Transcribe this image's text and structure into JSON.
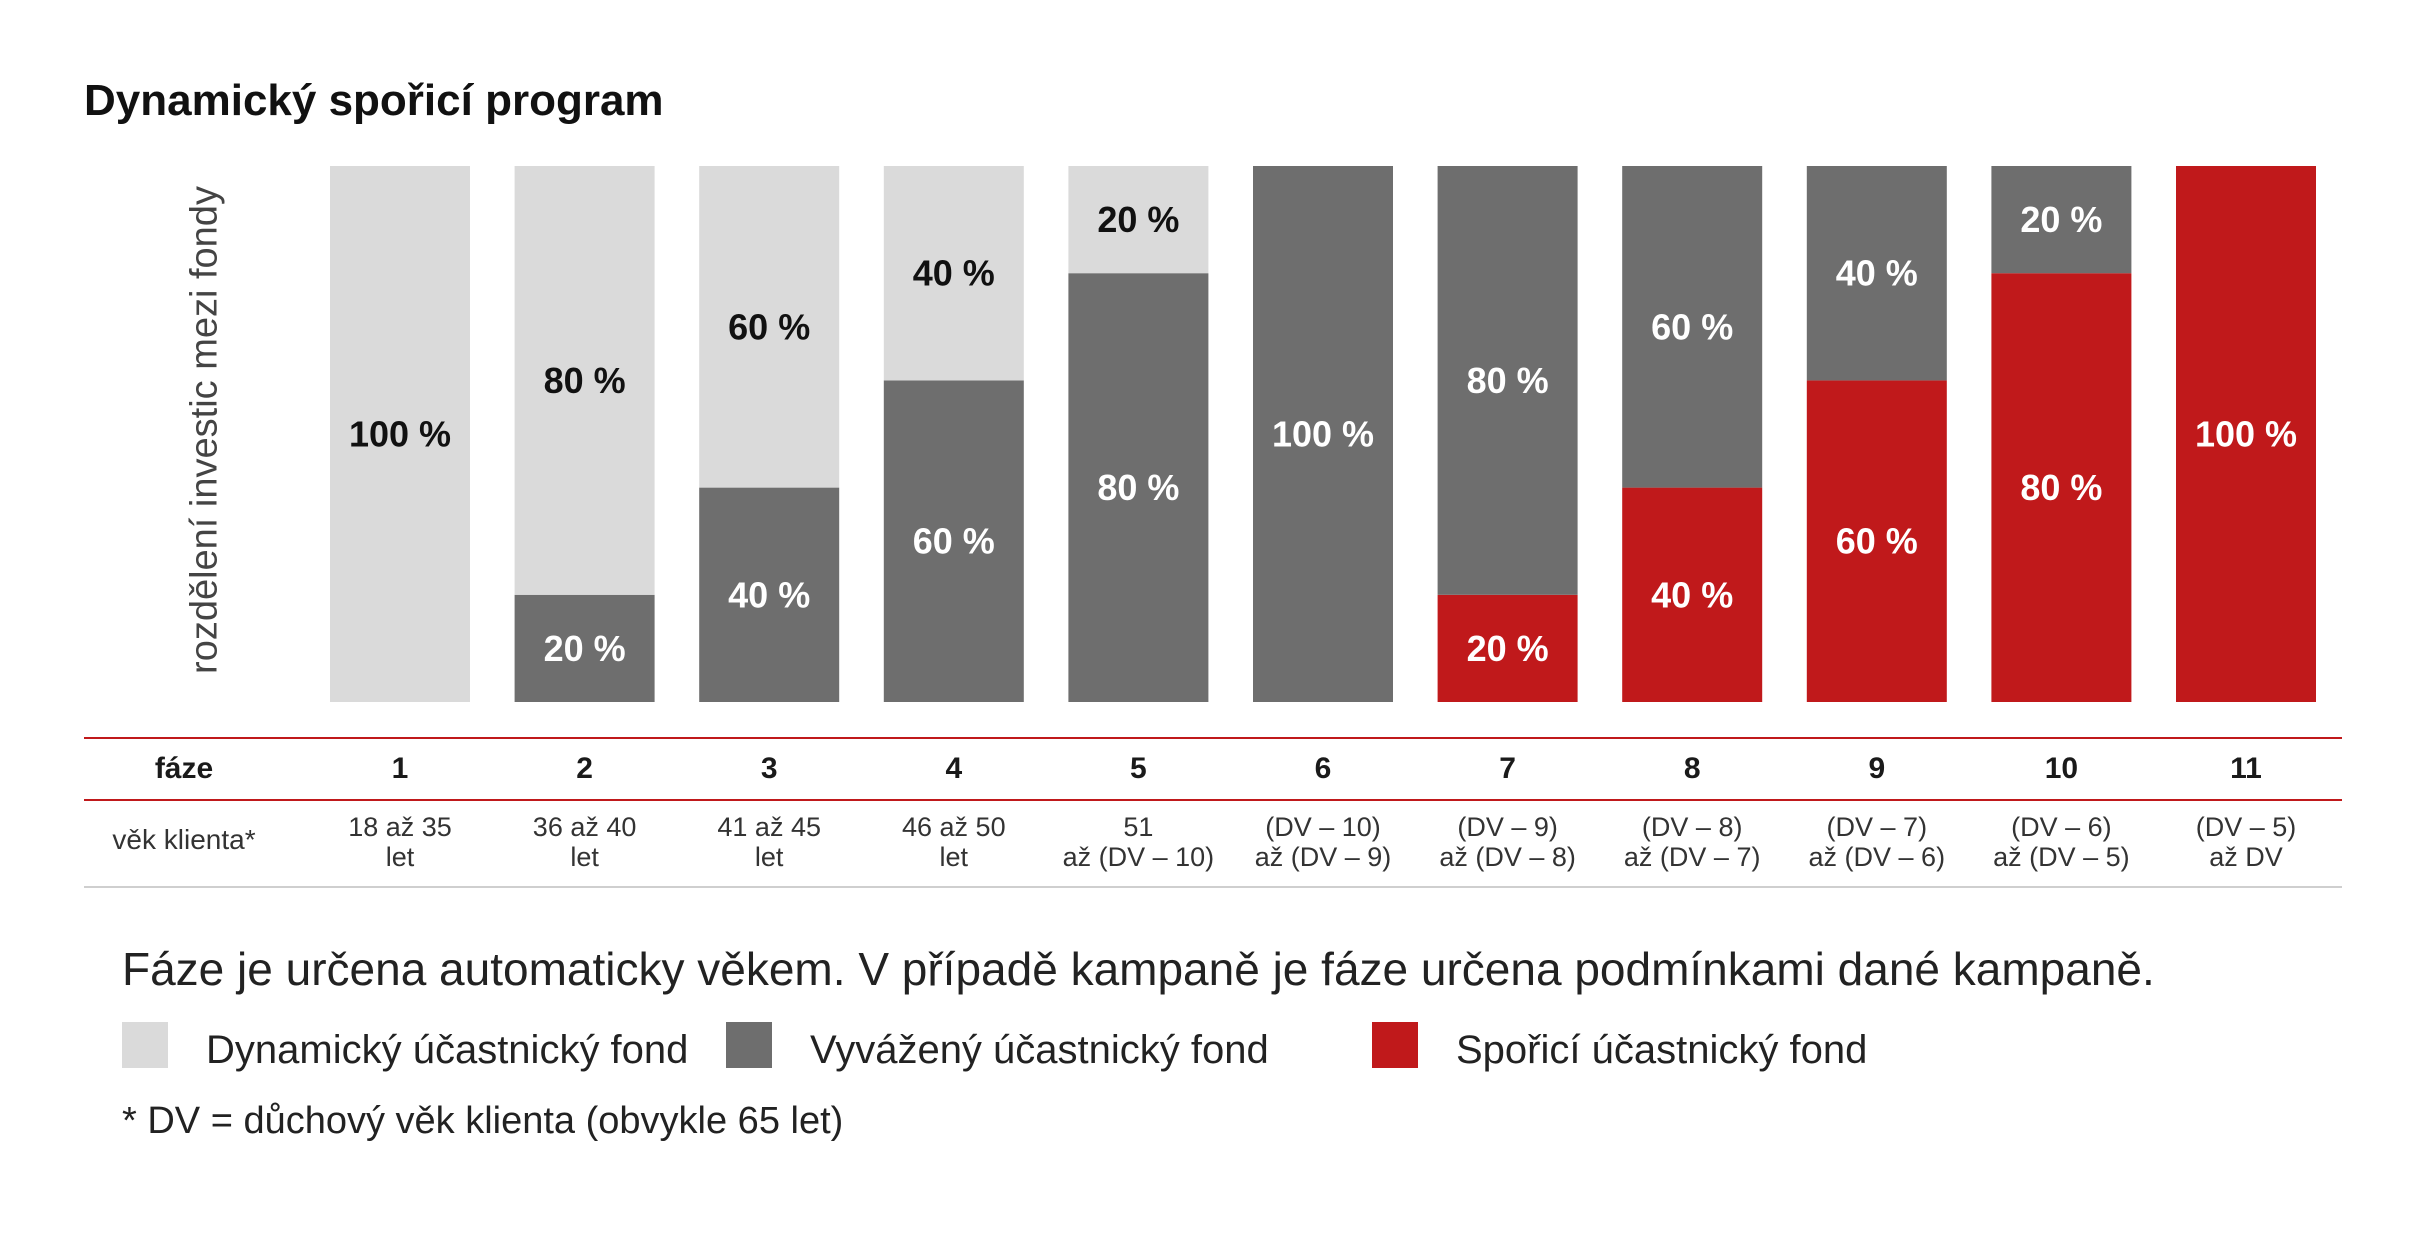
{
  "chart_data": {
    "type": "bar",
    "stacked": true,
    "title": "Dynamický spořicí program",
    "ylabel": "rozdělení investic mezi fondy",
    "ylim": [
      0,
      100
    ],
    "grid": false,
    "categories": [
      "1",
      "2",
      "3",
      "4",
      "5",
      "6",
      "7",
      "8",
      "9",
      "10",
      "11"
    ],
    "series": [
      {
        "name": "Spořicí účastnický fond",
        "color": "#c0191b",
        "label_color": "#ffffff",
        "values": [
          0,
          0,
          0,
          0,
          0,
          0,
          20,
          40,
          60,
          80,
          100
        ]
      },
      {
        "name": "Vyvážený účastnický fond",
        "color": "#6e6e6e",
        "label_color": "#ffffff",
        "values": [
          0,
          20,
          40,
          60,
          80,
          100,
          80,
          60,
          40,
          20,
          0
        ]
      },
      {
        "name": "Dynamický účastnický fond",
        "color": "#dadada",
        "label_color": "#111111",
        "values": [
          100,
          80,
          60,
          40,
          20,
          0,
          0,
          0,
          0,
          0,
          0
        ]
      }
    ],
    "value_suffix": " %"
  },
  "table": {
    "phase_label": "fáze",
    "age_label": "věk klienta*",
    "ages": [
      "18 až 35\nlet",
      "36 až 40\nlet",
      "41 až 45\nlet",
      "46 až 50\nlet",
      "51\naž (DV – 10)",
      "(DV – 10)\naž (DV – 9)",
      "(DV – 9)\naž (DV – 8)",
      "(DV – 8)\naž (DV – 7)",
      "(DV – 7)\naž (DV – 6)",
      "(DV – 6)\naž (DV – 5)",
      "(DV – 5)\naž DV"
    ],
    "rule_color": "#c0191b"
  },
  "note": "Fáze je určena automaticky věkem. V případě kampaně je fáze určena podmínkami dané kampaně.",
  "legend": [
    {
      "label": "Dynamický účastnický fond",
      "color": "#dadada"
    },
    {
      "label": "Vyvážený účastnický fond",
      "color": "#6e6e6e"
    },
    {
      "label": "Spořicí účastnický fond",
      "color": "#c0191b"
    }
  ],
  "footnote": "* DV = důchový věk klienta (obvykle 65 let)"
}
